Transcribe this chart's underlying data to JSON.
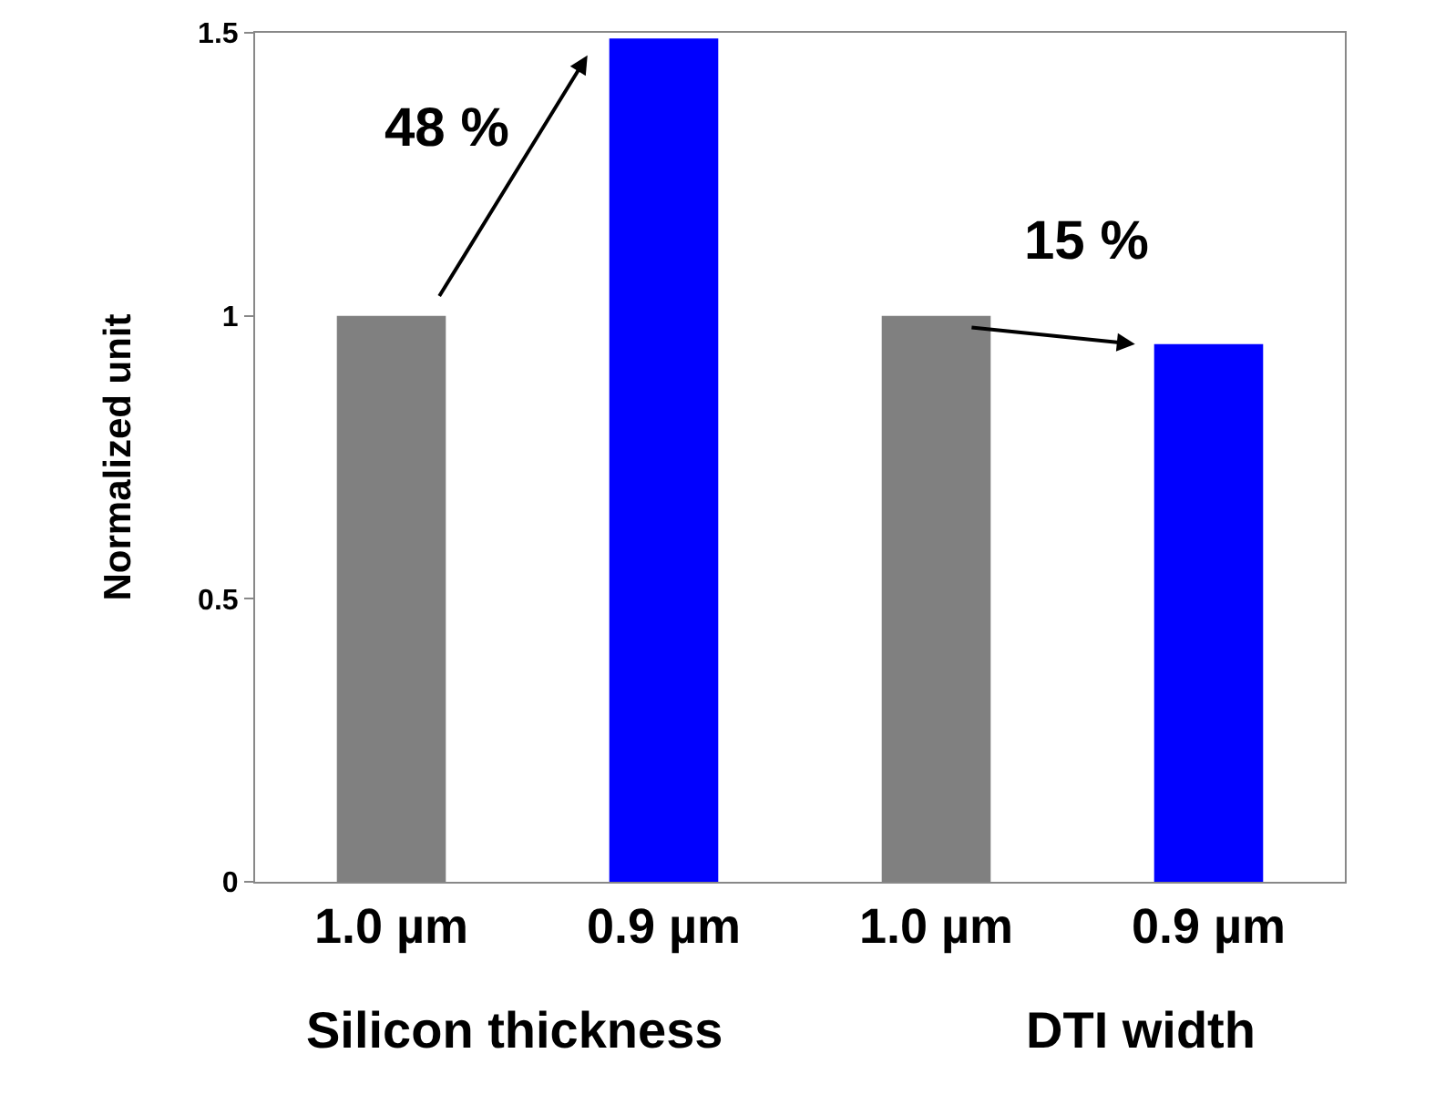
{
  "chart_data": {
    "type": "bar",
    "ylabel": "Normalized unit",
    "categories": [
      "1.0 µm",
      "0.9 µm",
      "1.0 µm",
      "0.9 µm"
    ],
    "values": [
      1.0,
      1.49,
      1.0,
      0.95
    ],
    "colors": [
      "#808080",
      "#0000ff",
      "#808080",
      "#0000ff"
    ],
    "ylim": [
      0,
      1.5
    ],
    "yticks": [
      0,
      0.5,
      1,
      1.5
    ],
    "grid": false,
    "annotations": [
      "48 %",
      "15 %",
      "Silicon thickness",
      "DTI width"
    ]
  }
}
